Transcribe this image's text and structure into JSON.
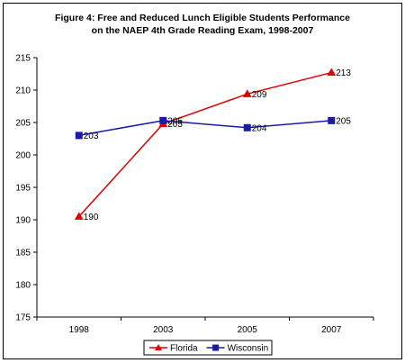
{
  "chart_data": {
    "type": "line",
    "title_lines": [
      "Figure 4: Free and Reduced Lunch Eligible Students Performance",
      "on the NAEP 4th Grade Reading Exam, 1998-2007"
    ],
    "categories": [
      "1998",
      "2003",
      "2005",
      "2007"
    ],
    "ylim": [
      175,
      215
    ],
    "yticks": [
      175,
      180,
      185,
      190,
      195,
      200,
      205,
      210,
      215
    ],
    "grid": false,
    "legend_position": "bottom",
    "series": [
      {
        "name": "Florida",
        "values": [
          190.5,
          204.8,
          209.4,
          212.7
        ],
        "labels": [
          "190",
          "205",
          "209",
          "213"
        ],
        "color": "#e00000",
        "marker": "triangle"
      },
      {
        "name": "Wisconsin",
        "values": [
          203,
          205.3,
          204.2,
          205.3
        ],
        "labels": [
          "203",
          "205",
          "204",
          "205"
        ],
        "color": "#1a1aa6",
        "marker": "square"
      }
    ]
  }
}
